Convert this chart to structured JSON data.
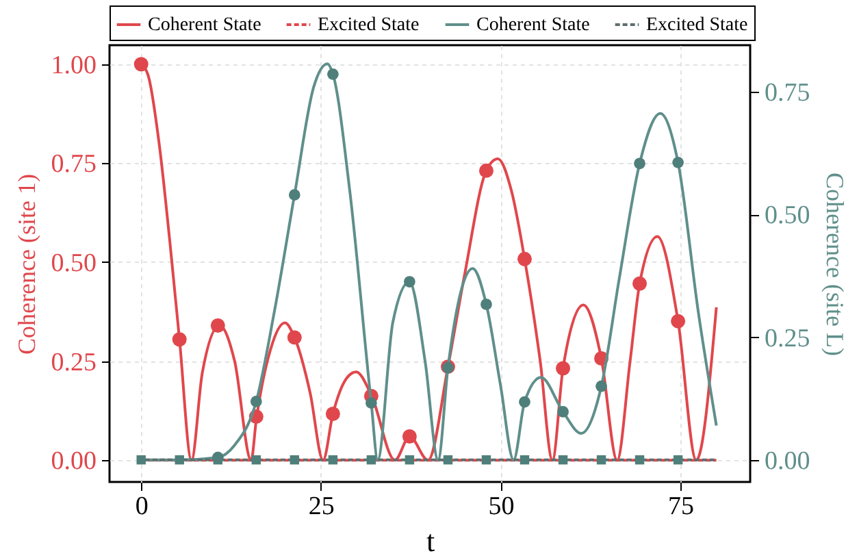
{
  "chart_data": {
    "type": "line",
    "xlabel": "t",
    "ylabel": "Coherence (site 1)",
    "y2label": "Coherence (site L)",
    "xlim": [
      -4.4,
      84.7
    ],
    "xticks": [
      0,
      25,
      50,
      75
    ],
    "ylim": [
      -0.055,
      1.048
    ],
    "yticks": [
      {
        "value": 0,
        "label": "0.00"
      },
      {
        "value": 0.25,
        "label": "0.25"
      },
      {
        "value": 0.5,
        "label": "0.50"
      },
      {
        "value": 0.75,
        "label": "0.75"
      },
      {
        "value": 1,
        "label": "1.00"
      }
    ],
    "y2lim": [
      -0.045,
      0.845
    ],
    "y2ticks": [
      {
        "value": 0,
        "label": "0.00"
      },
      {
        "value": 0.25,
        "label": "0.25"
      },
      {
        "value": 0.5,
        "label": "0.50"
      },
      {
        "value": 0.75,
        "label": "0.75"
      }
    ],
    "grid": true,
    "legend": "top",
    "series": [
      {
        "name": "Coherent State",
        "type": "line",
        "color": "#e0474c",
        "line_style": "solid",
        "x": [
          0,
          1,
          2.5,
          4,
          5.33,
          7,
          8.5,
          10.9,
          13,
          15.3,
          16,
          18,
          20,
          21.33,
          23.5,
          25.3,
          26.67,
          28.5,
          29.9,
          32,
          35.3,
          37.33,
          39.9,
          42.67,
          45,
          48,
          49.6,
          51.5,
          53.33,
          55.5,
          57.2,
          58.67,
          61.5,
          64,
          66.2,
          68,
          69.33,
          71.8,
          74.67,
          77.2,
          80
        ],
        "values": [
          1,
          0.97,
          0.8,
          0.55,
          0.305,
          0,
          0.22,
          0.34,
          0.25,
          0,
          0.1,
          0.28,
          0.347,
          0.31,
          0.17,
          0,
          0.117,
          0.205,
          0.223,
          0.165,
          0,
          0.06,
          0,
          0.236,
          0.47,
          0.731,
          0.761,
          0.68,
          0.508,
          0.25,
          0,
          0.232,
          0.392,
          0.257,
          0,
          0.25,
          0.446,
          0.565,
          0.351,
          0,
          0.386
        ]
      },
      {
        "name": "Excited State",
        "type": "line",
        "color": "#e0474c",
        "line_style": "dashed",
        "x": [
          0,
          80
        ],
        "values": [
          0,
          0
        ]
      },
      {
        "name": "Coherent State",
        "type": "line",
        "axis": "y2",
        "color": "#5f8f8b",
        "line_style": "solid",
        "x": [
          0,
          5.33,
          10.67,
          13,
          16,
          18.5,
          21.33,
          24,
          25.9,
          26.67,
          29,
          32,
          32.9,
          35,
          37.3,
          39.5,
          41.3,
          42.67,
          46.1,
          48,
          50,
          51.8,
          53.33,
          55.6,
          58.67,
          61.2,
          64,
          66.5,
          69.33,
          72.2,
          74.67,
          77.5,
          80
        ],
        "values": [
          0,
          0,
          0.005,
          0.03,
          0.119,
          0.3,
          0.54,
          0.76,
          0.807,
          0.786,
          0.55,
          0.116,
          0,
          0.28,
          0.363,
          0.2,
          0,
          0.188,
          0.39,
          0.317,
          0.15,
          0,
          0.118,
          0.168,
          0.098,
          0.054,
          0.15,
          0.37,
          0.604,
          0.706,
          0.606,
          0.3,
          0.07
        ]
      },
      {
        "name": "Excited State",
        "type": "line",
        "axis": "y2",
        "color": "#5f6f6f",
        "line_style": "dashed",
        "x": [
          0,
          80
        ],
        "values": [
          0,
          0
        ]
      },
      {
        "type": "scatter",
        "color": "#e0474c",
        "marker": "circle",
        "x": [
          0,
          5.33,
          10.67,
          16,
          21.33,
          26.67,
          32,
          37.33,
          42.67,
          48,
          53.33,
          58.67,
          64,
          69.33,
          74.67
        ],
        "values": [
          1,
          0.305,
          0.34,
          0.11,
          0.31,
          0.117,
          0.162,
          0.06,
          0.236,
          0.731,
          0.508,
          0.232,
          0.257,
          0.446,
          0.351
        ]
      },
      {
        "type": "scatter",
        "axis": "y2",
        "color": "#4f7f7b",
        "marker": "circle",
        "x": [
          10.67,
          16,
          21.33,
          26.67,
          32,
          37.33,
          42.67,
          48,
          53.33,
          58.67,
          64,
          69.33,
          74.67
        ],
        "values": [
          0.005,
          0.119,
          0.54,
          0.786,
          0.116,
          0.363,
          0.188,
          0.317,
          0.118,
          0.098,
          0.15,
          0.604,
          0.606
        ]
      },
      {
        "type": "scatter",
        "axis": "y2",
        "color": "#4f7f7b",
        "marker": "square",
        "x": [
          0,
          5.33,
          10.67,
          16,
          21.33,
          26.67,
          32,
          37.33,
          42.67,
          48,
          53.33,
          58.67,
          64,
          69.33,
          74.67
        ],
        "values": [
          0,
          0,
          0,
          0,
          0,
          0,
          0,
          0,
          0,
          0,
          0,
          0,
          0,
          0,
          0
        ]
      }
    ]
  }
}
